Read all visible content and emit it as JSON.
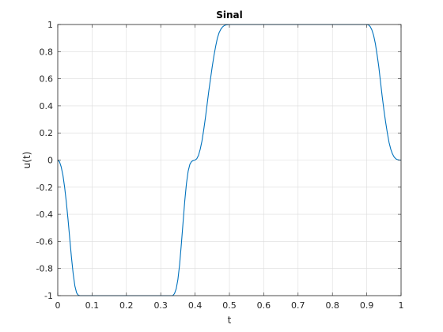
{
  "chart_data": {
    "type": "line",
    "title": "Sinal",
    "xlabel": "t",
    "ylabel": "u(t)",
    "xlim": [
      0,
      1
    ],
    "ylim": [
      -1,
      1
    ],
    "grid": true,
    "xticks": [
      0,
      0.1,
      0.2,
      0.3,
      0.4,
      0.5,
      0.6,
      0.7,
      0.8,
      0.9,
      1
    ],
    "xtick_labels": [
      "0",
      "0.1",
      "0.2",
      "0.3",
      "0.4",
      "0.5",
      "0.6",
      "0.7",
      "0.8",
      "0.9",
      "1"
    ],
    "yticks": [
      -1,
      -0.8,
      -0.6,
      -0.4,
      -0.2,
      0,
      0.2,
      0.4,
      0.6,
      0.8,
      1
    ],
    "ytick_labels": [
      "-1",
      "-0.8",
      "-0.6",
      "-0.4",
      "-0.2",
      "0",
      "0.2",
      "0.4",
      "0.6",
      "0.8",
      "1"
    ],
    "series": [
      {
        "color": "#0072bd",
        "x": [
          0,
          0.005,
          0.01,
          0.015,
          0.02,
          0.025,
          0.03,
          0.035,
          0.04,
          0.045,
          0.05,
          0.055,
          0.06,
          0.065,
          0.07,
          0.08,
          0.1,
          0.15,
          0.2,
          0.25,
          0.3,
          0.32,
          0.335,
          0.34,
          0.345,
          0.35,
          0.355,
          0.36,
          0.365,
          0.37,
          0.375,
          0.38,
          0.385,
          0.39,
          0.395,
          0.4,
          0.405,
          0.41,
          0.415,
          0.42,
          0.425,
          0.43,
          0.435,
          0.44,
          0.445,
          0.45,
          0.455,
          0.46,
          0.465,
          0.47,
          0.475,
          0.48,
          0.485,
          0.49,
          0.495,
          0.5,
          0.52,
          0.6,
          0.7,
          0.8,
          0.88,
          0.9,
          0.905,
          0.91,
          0.915,
          0.92,
          0.925,
          0.93,
          0.935,
          0.94,
          0.945,
          0.95,
          0.955,
          0.96,
          0.965,
          0.97,
          0.975,
          0.98,
          0.985,
          0.99,
          0.995,
          1
        ],
        "y": [
          0,
          -0.012,
          -0.05,
          -0.11,
          -0.2,
          -0.31,
          -0.44,
          -0.58,
          -0.72,
          -0.84,
          -0.93,
          -0.98,
          -0.997,
          -1,
          -1,
          -1,
          -1,
          -1,
          -1,
          -1,
          -1,
          -1,
          -1,
          -0.985,
          -0.95,
          -0.88,
          -0.77,
          -0.62,
          -0.46,
          -0.3,
          -0.17,
          -0.08,
          -0.03,
          -0.01,
          -0.003,
          0,
          0.01,
          0.035,
          0.08,
          0.14,
          0.22,
          0.31,
          0.41,
          0.51,
          0.6,
          0.69,
          0.77,
          0.84,
          0.9,
          0.94,
          0.965,
          0.982,
          0.992,
          0.997,
          0.999,
          1,
          1,
          1,
          1,
          1,
          1,
          1,
          0.997,
          0.985,
          0.96,
          0.92,
          0.86,
          0.78,
          0.69,
          0.58,
          0.47,
          0.37,
          0.28,
          0.2,
          0.13,
          0.08,
          0.045,
          0.022,
          0.009,
          0.003,
          0.0005,
          0
        ]
      }
    ]
  }
}
